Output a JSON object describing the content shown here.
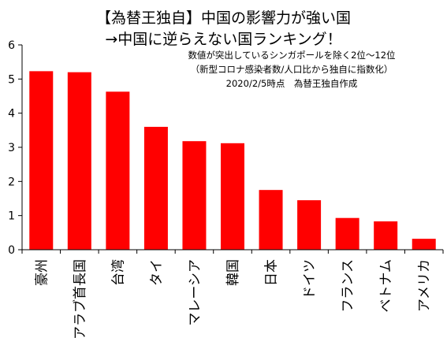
{
  "chart_data": {
    "type": "bar",
    "title": "【為替王独自】中国の影響力が強い国",
    "title_line2": "→中国に逆らえない国ランキング！",
    "annotations": [
      "数値が突出しているシンガポールを除く2位～12位",
      "（新型コロナ感染者数/人口比から独自に指数化）",
      "2020/2/5時点　為替王独自作成"
    ],
    "categories": [
      "豪州",
      "アラブ首長国",
      "台湾",
      "タイ",
      "マレーシア",
      "韓国",
      "日本",
      "ドイツ",
      "フランス",
      "ベトナム",
      "アメリカ"
    ],
    "values": [
      5.23,
      5.2,
      4.63,
      3.6,
      3.18,
      3.12,
      1.75,
      1.45,
      0.93,
      0.83,
      0.32
    ],
    "yticks": [
      "0",
      "1",
      "2",
      "3",
      "4",
      "5",
      "6"
    ],
    "ylim": [
      0,
      6
    ],
    "xlabel": "",
    "ylabel": "",
    "grid": false,
    "bar_color": "#ff0000"
  }
}
